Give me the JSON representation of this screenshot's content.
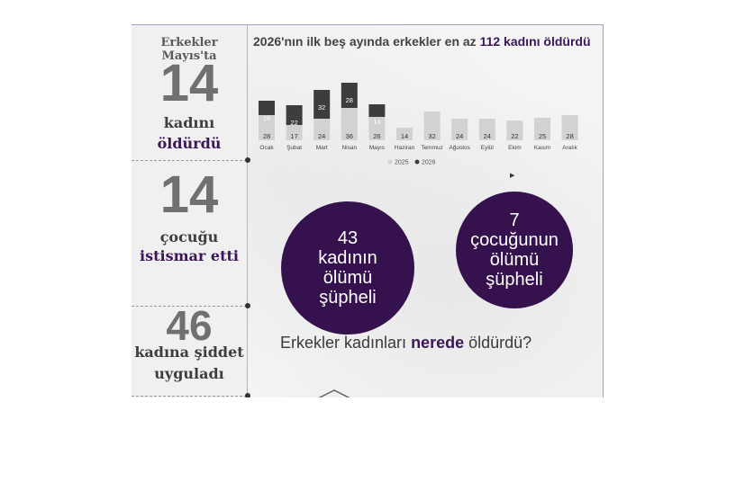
{
  "left_panel": {
    "title": "Erkekler Mayıs'ta",
    "stats": [
      {
        "number": "14",
        "line1": "kadını",
        "line2": "öldürdü"
      },
      {
        "number": "14",
        "line1": "çocuğu",
        "line2": "istismar etti"
      },
      {
        "number": "46",
        "line1": "kadına şiddet",
        "line2": "uyguladı"
      }
    ]
  },
  "chart_title": {
    "prefix": "2026'nın ilk beş ayında erkekler en az ",
    "highlight": "112 kadını öldürdü"
  },
  "chart_data": {
    "type": "bar",
    "title": "2026'nın ilk beş ayında erkekler en az 112 kadını öldürdü",
    "categories": [
      "Ocak",
      "Şubat",
      "Mart",
      "Nisan",
      "Mayıs",
      "Haziran",
      "Temmuz",
      "Ağustos",
      "Eylül",
      "Ekim",
      "Kasım",
      "Aralık"
    ],
    "stacked": true,
    "series": [
      {
        "name": "2025",
        "values": [
          28,
          17,
          24,
          36,
          26,
          14,
          32,
          24,
          24,
          22,
          25,
          28
        ],
        "color": "#d2d2d2"
      },
      {
        "name": "2026",
        "values": [
          16,
          22,
          32,
          28,
          14,
          null,
          null,
          null,
          null,
          null,
          null,
          null
        ],
        "color": "#3d3d3d"
      }
    ],
    "legend_position": "bottom",
    "grid": false
  },
  "circles": [
    {
      "lines": [
        "43",
        "kadının",
        "ölümü",
        "şüpheli"
      ]
    },
    {
      "lines": [
        "7",
        "çocuğunun",
        "ölümü",
        "şüpheli"
      ]
    }
  ],
  "where": {
    "prefix": "Erkekler kadınları ",
    "highlight": "nerede",
    "suffix": " öldürdü?"
  },
  "colors": {
    "accent_purple": "#35124e",
    "bar_2025": "#d2d2d2",
    "bar_2026": "#3d3d3d"
  }
}
